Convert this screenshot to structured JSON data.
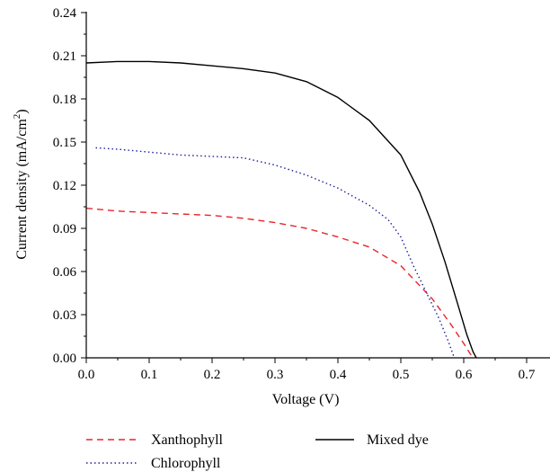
{
  "chart_data": {
    "type": "line",
    "xlabel": "Voltage (V)",
    "ylabel_main": "Current density (mA/cm",
    "ylabel_sup": "2",
    "ylabel_close": ")",
    "xlim": [
      0,
      0.75
    ],
    "ylim": [
      0,
      0.25
    ],
    "xticks": [
      "0.0",
      "0.1",
      "0.2",
      "0.3",
      "0.4",
      "0.5",
      "0.6",
      "0.7"
    ],
    "yticks": [
      "0.00",
      "0.03",
      "0.06",
      "0.09",
      "0.12",
      "0.15",
      "0.18",
      "0.21",
      "0.24"
    ],
    "xtick_values": [
      0,
      0.1,
      0.2,
      0.3,
      0.4,
      0.5,
      0.6,
      0.7
    ],
    "ytick_values": [
      0,
      0.03,
      0.06,
      0.09,
      0.12,
      0.15,
      0.18,
      0.21,
      0.24
    ],
    "grid": false,
    "legend_position": "bottom",
    "series": [
      {
        "name": "Xanthophyll",
        "color": "#e8262a",
        "dash": "dashed",
        "x": [
          0.0,
          0.05,
          0.1,
          0.15,
          0.2,
          0.25,
          0.3,
          0.35,
          0.4,
          0.45,
          0.5,
          0.55,
          0.58,
          0.6,
          0.61,
          0.615
        ],
        "y": [
          0.104,
          0.102,
          0.101,
          0.1,
          0.099,
          0.097,
          0.094,
          0.09,
          0.084,
          0.077,
          0.064,
          0.041,
          0.023,
          0.01,
          0.003,
          0.0
        ]
      },
      {
        "name": "Chlorophyll",
        "color": "#1f1f9e",
        "dash": "dotted",
        "x": [
          0.015,
          0.05,
          0.1,
          0.15,
          0.2,
          0.25,
          0.3,
          0.35,
          0.4,
          0.45,
          0.48,
          0.5,
          0.52,
          0.54,
          0.56,
          0.575,
          0.585
        ],
        "y": [
          0.146,
          0.145,
          0.143,
          0.141,
          0.14,
          0.139,
          0.134,
          0.127,
          0.118,
          0.106,
          0.096,
          0.084,
          0.064,
          0.046,
          0.028,
          0.012,
          0.0
        ]
      },
      {
        "name": "Mixed dye",
        "color": "#000000",
        "dash": "solid",
        "x": [
          0.0,
          0.05,
          0.1,
          0.15,
          0.2,
          0.25,
          0.3,
          0.35,
          0.4,
          0.45,
          0.5,
          0.53,
          0.55,
          0.57,
          0.59,
          0.605,
          0.615,
          0.62
        ],
        "y": [
          0.205,
          0.206,
          0.206,
          0.205,
          0.203,
          0.201,
          0.198,
          0.192,
          0.181,
          0.165,
          0.141,
          0.115,
          0.093,
          0.067,
          0.038,
          0.016,
          0.004,
          0.0
        ]
      }
    ]
  }
}
